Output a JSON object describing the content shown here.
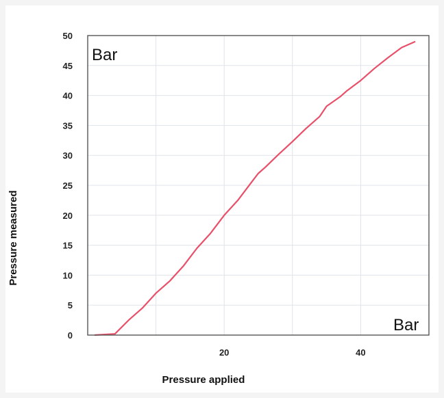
{
  "chart_data": {
    "type": "line",
    "title": "",
    "xlabel": "Pressure applied",
    "ylabel": "Pressure measured",
    "x_unit_label": "Bar",
    "y_unit_label": "Bar",
    "xlim": [
      0,
      50
    ],
    "ylim": [
      0,
      50
    ],
    "x_ticks": [
      20,
      40
    ],
    "y_ticks": [
      0,
      5,
      10,
      15,
      20,
      25,
      30,
      35,
      40,
      45,
      50
    ],
    "grid": true,
    "legend": "none",
    "line_color": "#e8506a",
    "series": [
      {
        "x": [
          1,
          4,
          6,
          8,
          10,
          12,
          14,
          16,
          18,
          20,
          22,
          24,
          25,
          26,
          28,
          30,
          32,
          34,
          35,
          36,
          37,
          38,
          40,
          42,
          44,
          46,
          48
        ],
        "y": [
          0,
          0.2,
          2.5,
          4.5,
          7,
          9,
          11.5,
          14.5,
          17,
          20,
          22.5,
          25.5,
          27,
          28,
          30.2,
          32.3,
          34.5,
          36.5,
          38.2,
          39,
          39.8,
          40.8,
          42.5,
          44.5,
          46.3,
          48,
          49
        ]
      }
    ]
  }
}
